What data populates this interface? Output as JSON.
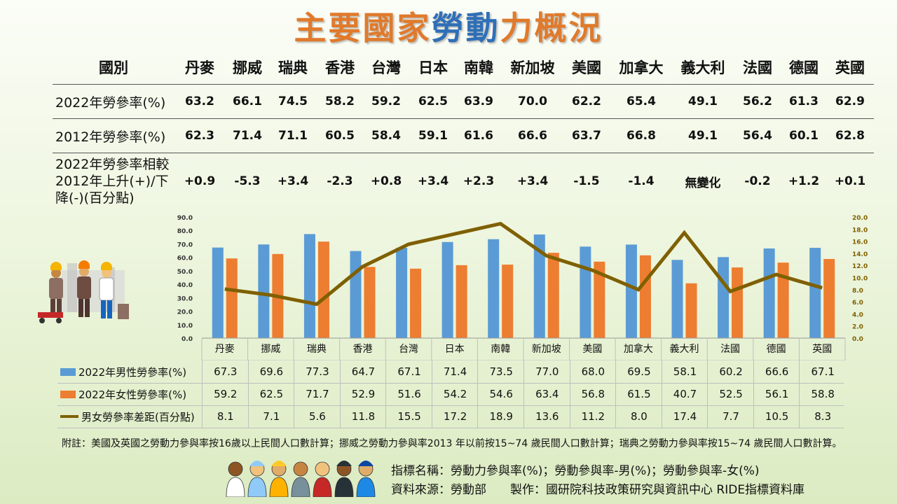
{
  "title": {
    "part1": "主要國家",
    "part2": "勞動",
    "part3": "力",
    "part4": "概況"
  },
  "summary": {
    "header_label": "國別",
    "countries": [
      "丹麥",
      "挪威",
      "瑞典",
      "香港",
      "台灣",
      "日本",
      "南韓",
      "新加坡",
      "美國",
      "加拿大",
      "義大利",
      "法國",
      "德國",
      "英國"
    ],
    "row2022_label": "2022年勞參率(%)",
    "row2022": [
      "63.2",
      "66.1",
      "74.5",
      "58.2",
      "59.2",
      "62.5",
      "63.9",
      "70.0",
      "62.2",
      "65.4",
      "49.1",
      "56.2",
      "61.3",
      "62.9"
    ],
    "row2012_label": "2012年勞參率(%)",
    "row2012": [
      "62.3",
      "71.4",
      "71.1",
      "60.5",
      "58.4",
      "59.1",
      "61.6",
      "66.6",
      "63.7",
      "66.8",
      "49.1",
      "56.4",
      "60.1",
      "62.8"
    ],
    "change_label": "2022年勞參率相較2012年上升(+)/下降(-)(百分點)",
    "change": [
      "+0.9",
      "-5.3",
      "+3.4",
      "-2.3",
      "+0.8",
      "+3.4",
      "+2.3",
      "+3.4",
      "-1.5",
      "-1.4",
      "無變化",
      "-0.2",
      "+1.2",
      "+0.1"
    ]
  },
  "chart_data": {
    "type": "bar",
    "categories": [
      "丹麥",
      "挪威",
      "瑞典",
      "香港",
      "台灣",
      "日本",
      "南韓",
      "新加坡",
      "美國",
      "加拿大",
      "義大利",
      "法國",
      "德國",
      "英國"
    ],
    "series": [
      {
        "name": "2022年男性勞參率(%)",
        "type": "bar",
        "axis": "left",
        "color": "#5b9bd5",
        "values": [
          67.3,
          69.6,
          77.3,
          64.7,
          67.1,
          71.4,
          73.5,
          77.0,
          68.0,
          69.5,
          58.1,
          60.2,
          66.6,
          67.1
        ],
        "labels": [
          "67.3",
          "69.6",
          "77.3",
          "64.7",
          "67.1",
          "71.4",
          "73.5",
          "77.0",
          "68.0",
          "69.5",
          "58.1",
          "60.2",
          "66.6",
          "67.1"
        ]
      },
      {
        "name": "2022年女性勞參率(%)",
        "type": "bar",
        "axis": "left",
        "color": "#ed7d31",
        "values": [
          59.2,
          62.5,
          71.7,
          52.9,
          51.6,
          54.2,
          54.6,
          63.4,
          56.8,
          61.5,
          40.7,
          52.5,
          56.1,
          58.8
        ],
        "labels": [
          "59.2",
          "62.5",
          "71.7",
          "52.9",
          "51.6",
          "54.2",
          "54.6",
          "63.4",
          "56.8",
          "61.5",
          "40.7",
          "52.5",
          "56.1",
          "58.8"
        ]
      },
      {
        "name": "男女勞參率差距(百分點)",
        "type": "line",
        "axis": "right",
        "color": "#7f6000",
        "values": [
          8.1,
          7.1,
          5.6,
          11.8,
          15.5,
          17.2,
          18.9,
          13.6,
          11.2,
          8.0,
          17.4,
          7.7,
          10.5,
          8.3
        ],
        "labels": [
          "8.1",
          "7.1",
          "5.6",
          "11.8",
          "15.5",
          "17.2",
          "18.9",
          "13.6",
          "11.2",
          "8.0",
          "17.4",
          "7.7",
          "10.5",
          "8.3"
        ]
      }
    ],
    "ylim_left": [
      0,
      90
    ],
    "yticks_left": [
      "0.0",
      "10.0",
      "20.0",
      "30.0",
      "40.0",
      "50.0",
      "60.0",
      "70.0",
      "80.0",
      "90.0"
    ],
    "ylim_right": [
      0,
      20
    ],
    "yticks_right": [
      "0.0",
      "2.0",
      "4.0",
      "6.0",
      "8.0",
      "10.0",
      "12.0",
      "14.0",
      "16.0",
      "18.0",
      "20.0"
    ],
    "grid": false,
    "legend": "data-table-below"
  },
  "note": "附註：美國及英國之勞動力參與率按16歲以上民間人口數計算；挪威之勞動力參與率2013 年以前按15~74 歲民間人口數計算；瑞典之勞動力參與率按15~74 歲民間人口數計算。",
  "meta": {
    "indicator": "指標名稱：勞動力參與率(%)；勞動參與率-男(%)；勞動參與率-女(%)",
    "source": "資料來源：勞動部　　製作：國研院科技政策研究與資訊中心 RIDE指標資料庫"
  },
  "colors": {
    "male": "#5b9bd5",
    "female": "#ed7d31",
    "gap": "#7f6000",
    "title_orange": "#e07a2c",
    "title_blue": "#2f6fb7"
  }
}
